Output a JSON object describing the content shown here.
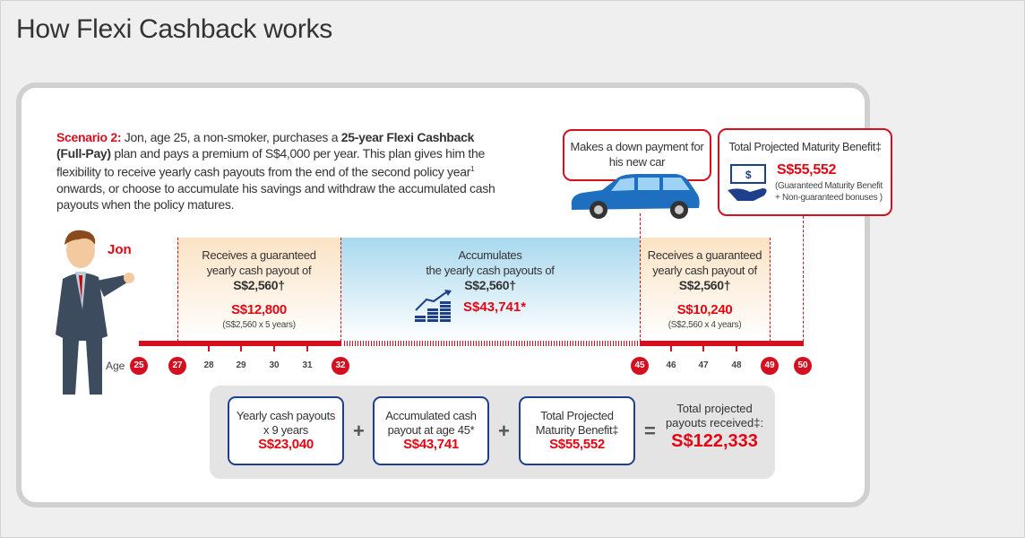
{
  "title": "How Flexi Cashback works",
  "scenario": {
    "label": "Scenario 2:",
    "text_1": " Jon, age 25, a non-smoker, purchases a ",
    "plan_name": "25-year Flexi Cashback (Full-Pay)",
    "text_2": " plan and pays a premium of S$4,000 per year. This plan gives him the flexibility to receive yearly cash payouts from the end of the second policy year",
    "footnote": "1",
    "text_3": " onwards, or choose to accumulate his savings and withdraw the accumulated cash payouts when the policy matures."
  },
  "person_name": "Jon",
  "car_callout": "Makes a down payment for his new car",
  "maturity_callout": {
    "title": "Total Projected Maturity Benefit‡",
    "amount": "S$55,552",
    "note_1": "(Guaranteed Maturity Benefit",
    "note_2": "+ Non-guaranteed bonuses )"
  },
  "bands": [
    {
      "line1": "Receives a guaranteed",
      "line2": "yearly cash payout of",
      "payout": "S$2,560†",
      "total": "S$12,800",
      "calc": "(S$2,560 x 5 years)"
    },
    {
      "line1": "Accumulates",
      "line2": "the yearly cash payouts of",
      "payout": "S$2,560†",
      "total": "S$43,741*"
    },
    {
      "line1": "Receives a guaranteed",
      "line2": "yearly cash payout of",
      "payout": "S$2,560†",
      "total": "S$10,240",
      "calc": "(S$2,560 x 4 years)"
    }
  ],
  "age_label": "Age",
  "ages": [
    "25",
    "27",
    "28",
    "29",
    "30",
    "31",
    "32",
    "45",
    "46",
    "47",
    "48",
    "49",
    "50"
  ],
  "summary": {
    "boxes": [
      {
        "line1": "Yearly cash payouts",
        "line2": "x 9 years",
        "amount": "S$23,040"
      },
      {
        "line1": "Accumulated cash",
        "line2": "payout at age 45*",
        "amount": "S$43,741"
      },
      {
        "line1": "Total Projected",
        "line2": "Maturity Benefit‡",
        "amount": "S$55,552"
      }
    ],
    "plus": "+",
    "equals": "=",
    "total_label_1": "Total projected",
    "total_label_2": "payouts received‡:",
    "total_amount": "S$122,333"
  },
  "colors": {
    "red": "#e30613",
    "navy": "#1e3f8c",
    "orange_band": "#fbe3c4",
    "blue_band": "#a8d8ee"
  }
}
